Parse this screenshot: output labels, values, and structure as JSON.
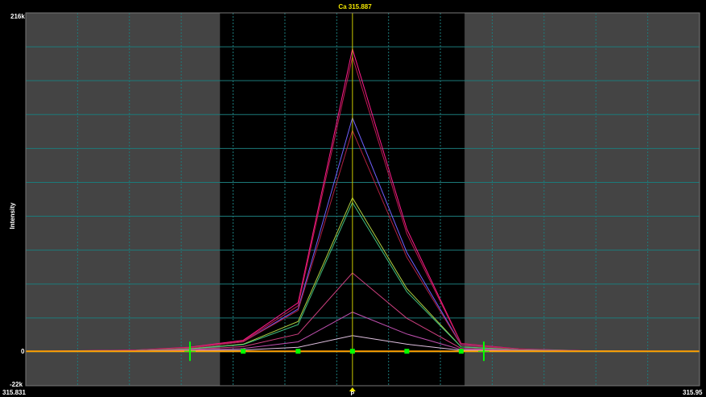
{
  "chart_data": {
    "type": "line",
    "title": "Ca 315.887",
    "ylabel": "Intensity",
    "xlabel": "",
    "xlim": [
      315.831,
      315.95
    ],
    "ylim": [
      -22000,
      216000
    ],
    "tick_labels": {
      "x_left": "315.831",
      "x_right": "315.95",
      "y_top": "216k",
      "y_zero": "0",
      "y_bottom": "-22k"
    },
    "peak_marker_label": "P",
    "grid": true,
    "colors": {
      "background": "#000000",
      "shaded_region": "#444444",
      "grid": "#1c7a7a",
      "peak_line": "#c8c800",
      "baseline_markers": "#00ff00",
      "title": "#f2e600"
    },
    "shaded_ranges": [
      [
        315.831,
        315.8653
      ],
      [
        315.9085,
        315.95
      ]
    ],
    "peak_x": 315.8887,
    "background_markers_x": [
      315.86,
      315.9119
    ],
    "baseline_points_x": [
      315.8694,
      315.8791,
      315.8887,
      315.8983,
      315.9079
    ],
    "x": [
      315.831,
      315.8505,
      315.8598,
      315.8694,
      315.8791,
      315.8887,
      315.8983,
      315.9079,
      315.9181,
      315.93,
      315.95
    ],
    "series": [
      {
        "color": "#ff1a8c",
        "values": [
          0,
          800,
          2500,
          7000,
          31000,
          193000,
          78000,
          5000,
          1500,
          300,
          0
        ]
      },
      {
        "color": "#c01850",
        "values": [
          0,
          700,
          2300,
          6500,
          29000,
          188000,
          75000,
          4800,
          1400,
          300,
          0
        ]
      },
      {
        "color": "#7060ff",
        "values": [
          0,
          600,
          2000,
          6000,
          27000,
          149000,
          63000,
          4000,
          1200,
          250,
          0
        ]
      },
      {
        "color": "#b02040",
        "values": [
          0,
          600,
          2000,
          6000,
          26000,
          141000,
          60000,
          3800,
          1200,
          250,
          0
        ]
      },
      {
        "color": "#b0d040",
        "values": [
          0,
          400,
          1500,
          4500,
          19000,
          98000,
          40000,
          2800,
          900,
          200,
          0
        ]
      },
      {
        "color": "#40c080",
        "values": [
          0,
          400,
          1400,
          4200,
          17000,
          95000,
          38000,
          2700,
          850,
          200,
          0
        ]
      },
      {
        "color": "#d04080",
        "values": [
          0,
          300,
          1000,
          3000,
          11000,
          50000,
          21000,
          1800,
          600,
          150,
          0
        ]
      },
      {
        "color": "#c050b0",
        "values": [
          0,
          200,
          600,
          1800,
          6000,
          25000,
          11000,
          1100,
          400,
          100,
          0
        ]
      },
      {
        "color": "#e0c0e0",
        "values": [
          0,
          100,
          300,
          800,
          2500,
          10000,
          4500,
          600,
          200,
          50,
          0
        ]
      },
      {
        "color": "#ffa000",
        "values": [
          0,
          0,
          0,
          0,
          0,
          0,
          0,
          0,
          0,
          0,
          0
        ]
      }
    ]
  }
}
